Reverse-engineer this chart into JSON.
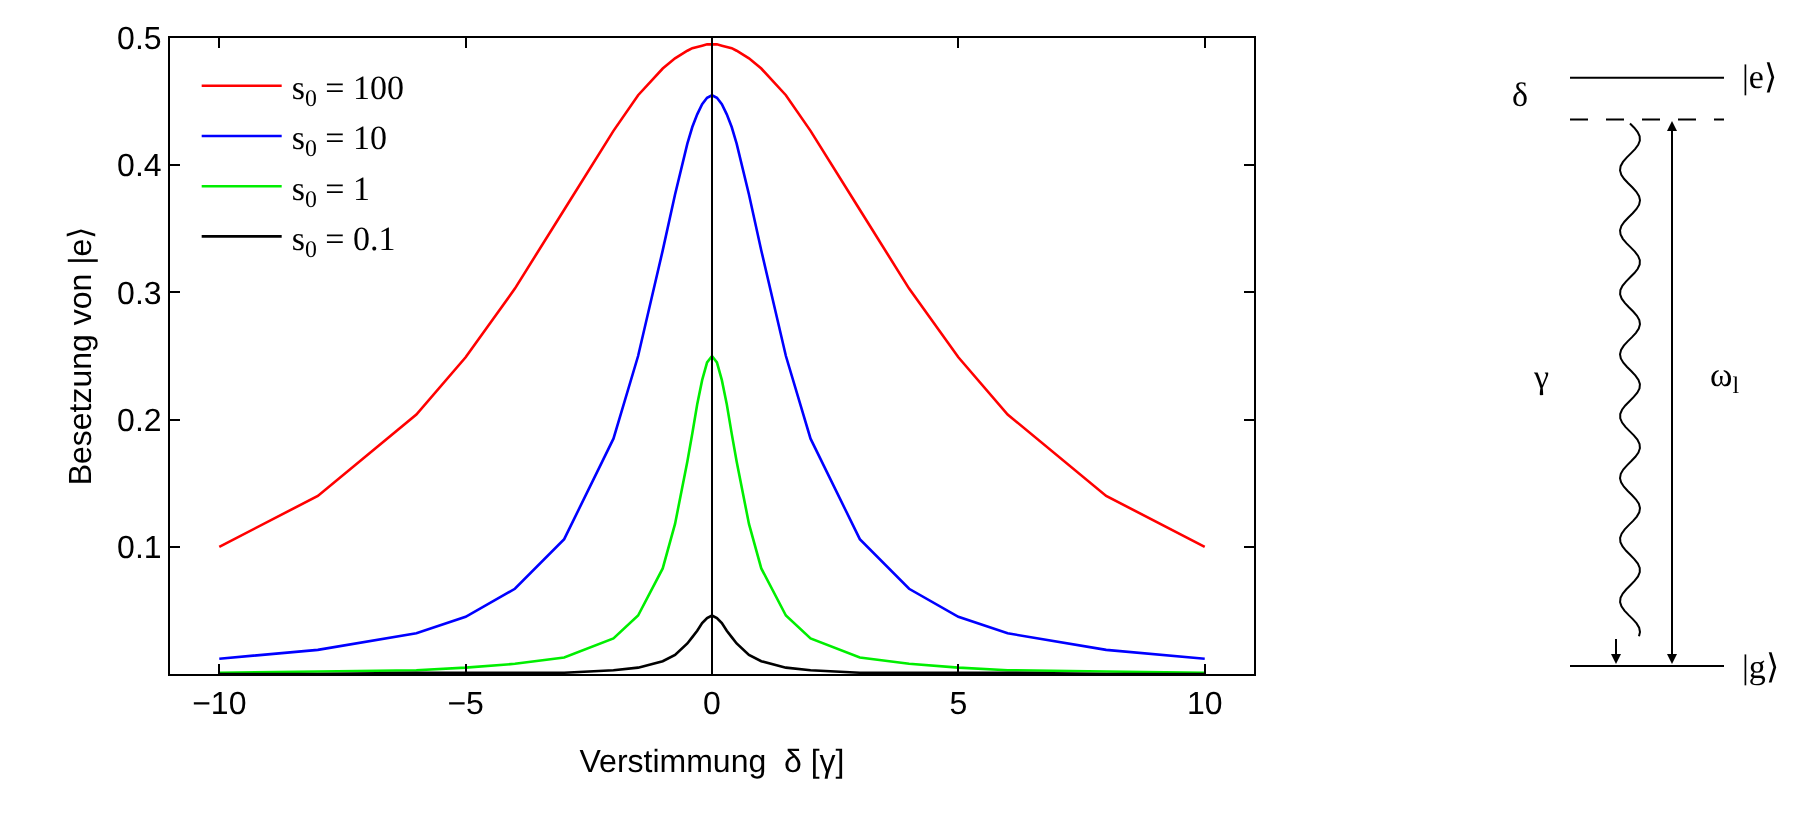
{
  "chart_data": {
    "type": "line",
    "xlabel": "Verstimmung  δ [γ]",
    "ylabel": "Besetzung von |e⟩",
    "x": [
      -10,
      -8,
      -6,
      -5,
      -4,
      -3,
      -2,
      -1.5,
      -1,
      -0.75,
      -0.5,
      -0.4,
      -0.3,
      -0.2,
      -0.1,
      0,
      0.1,
      0.2,
      0.3,
      0.4,
      0.5,
      0.75,
      1,
      1.5,
      2,
      3,
      4,
      5,
      6,
      8,
      10
    ],
    "series": [
      {
        "name": "s$_{0}$ = 100",
        "color": "#ff0000",
        "values": [
          0.1,
          0.14,
          0.204,
          0.249,
          0.303,
          0.365,
          0.427,
          0.455,
          0.476,
          0.484,
          0.49,
          0.492,
          0.493,
          0.494,
          0.495,
          0.495,
          0.495,
          0.494,
          0.493,
          0.492,
          0.49,
          0.484,
          0.476,
          0.455,
          0.427,
          0.365,
          0.303,
          0.249,
          0.204,
          0.14,
          0.1
        ]
      },
      {
        "name": "s$_{0}$ = 10",
        "color": "#0000ff",
        "values": [
          0.012,
          0.019,
          0.032,
          0.045,
          0.067,
          0.106,
          0.185,
          0.25,
          0.333,
          0.377,
          0.417,
          0.43,
          0.44,
          0.448,
          0.453,
          0.455,
          0.453,
          0.448,
          0.44,
          0.43,
          0.417,
          0.377,
          0.333,
          0.25,
          0.185,
          0.106,
          0.067,
          0.045,
          0.032,
          0.019,
          0.012
        ]
      },
      {
        "name": "s$_{0}$ = 1",
        "color": "#00ee00",
        "values": [
          0.001,
          0.002,
          0.003,
          0.005,
          0.008,
          0.013,
          0.028,
          0.046,
          0.083,
          0.118,
          0.167,
          0.189,
          0.212,
          0.231,
          0.245,
          0.25,
          0.245,
          0.231,
          0.212,
          0.189,
          0.167,
          0.118,
          0.083,
          0.046,
          0.028,
          0.013,
          0.008,
          0.005,
          0.003,
          0.002,
          0.001
        ]
      },
      {
        "name": "s$_{0}$ = 0.1",
        "color": "#000000",
        "values": [
          0.0,
          0.0,
          0.001,
          0.001,
          0.001,
          0.001,
          0.003,
          0.005,
          0.01,
          0.015,
          0.024,
          0.029,
          0.034,
          0.04,
          0.044,
          0.046,
          0.044,
          0.04,
          0.034,
          0.029,
          0.024,
          0.015,
          0.01,
          0.005,
          0.003,
          0.001,
          0.001,
          0.001,
          0.001,
          0.0,
          0.0
        ]
      }
    ],
    "xlim": [
      -11,
      11
    ],
    "xticks": [
      {
        "value": -10,
        "label": "−10"
      },
      {
        "value": -5,
        "label": "−5"
      },
      0,
      5,
      10
    ],
    "ylim": [
      0,
      0.5
    ],
    "yticks": [
      0.1,
      0.2,
      0.3,
      0.4,
      0.5
    ],
    "ref_lines": [
      {
        "axis": "x",
        "value": 0,
        "color": "#000000"
      }
    ],
    "legend": "top left",
    "marker": "none",
    "line_style": "solid",
    "annotations": [
      "δ",
      "|e⟩",
      "γ",
      "ω$_{l}$",
      "|g⟩"
    ]
  }
}
